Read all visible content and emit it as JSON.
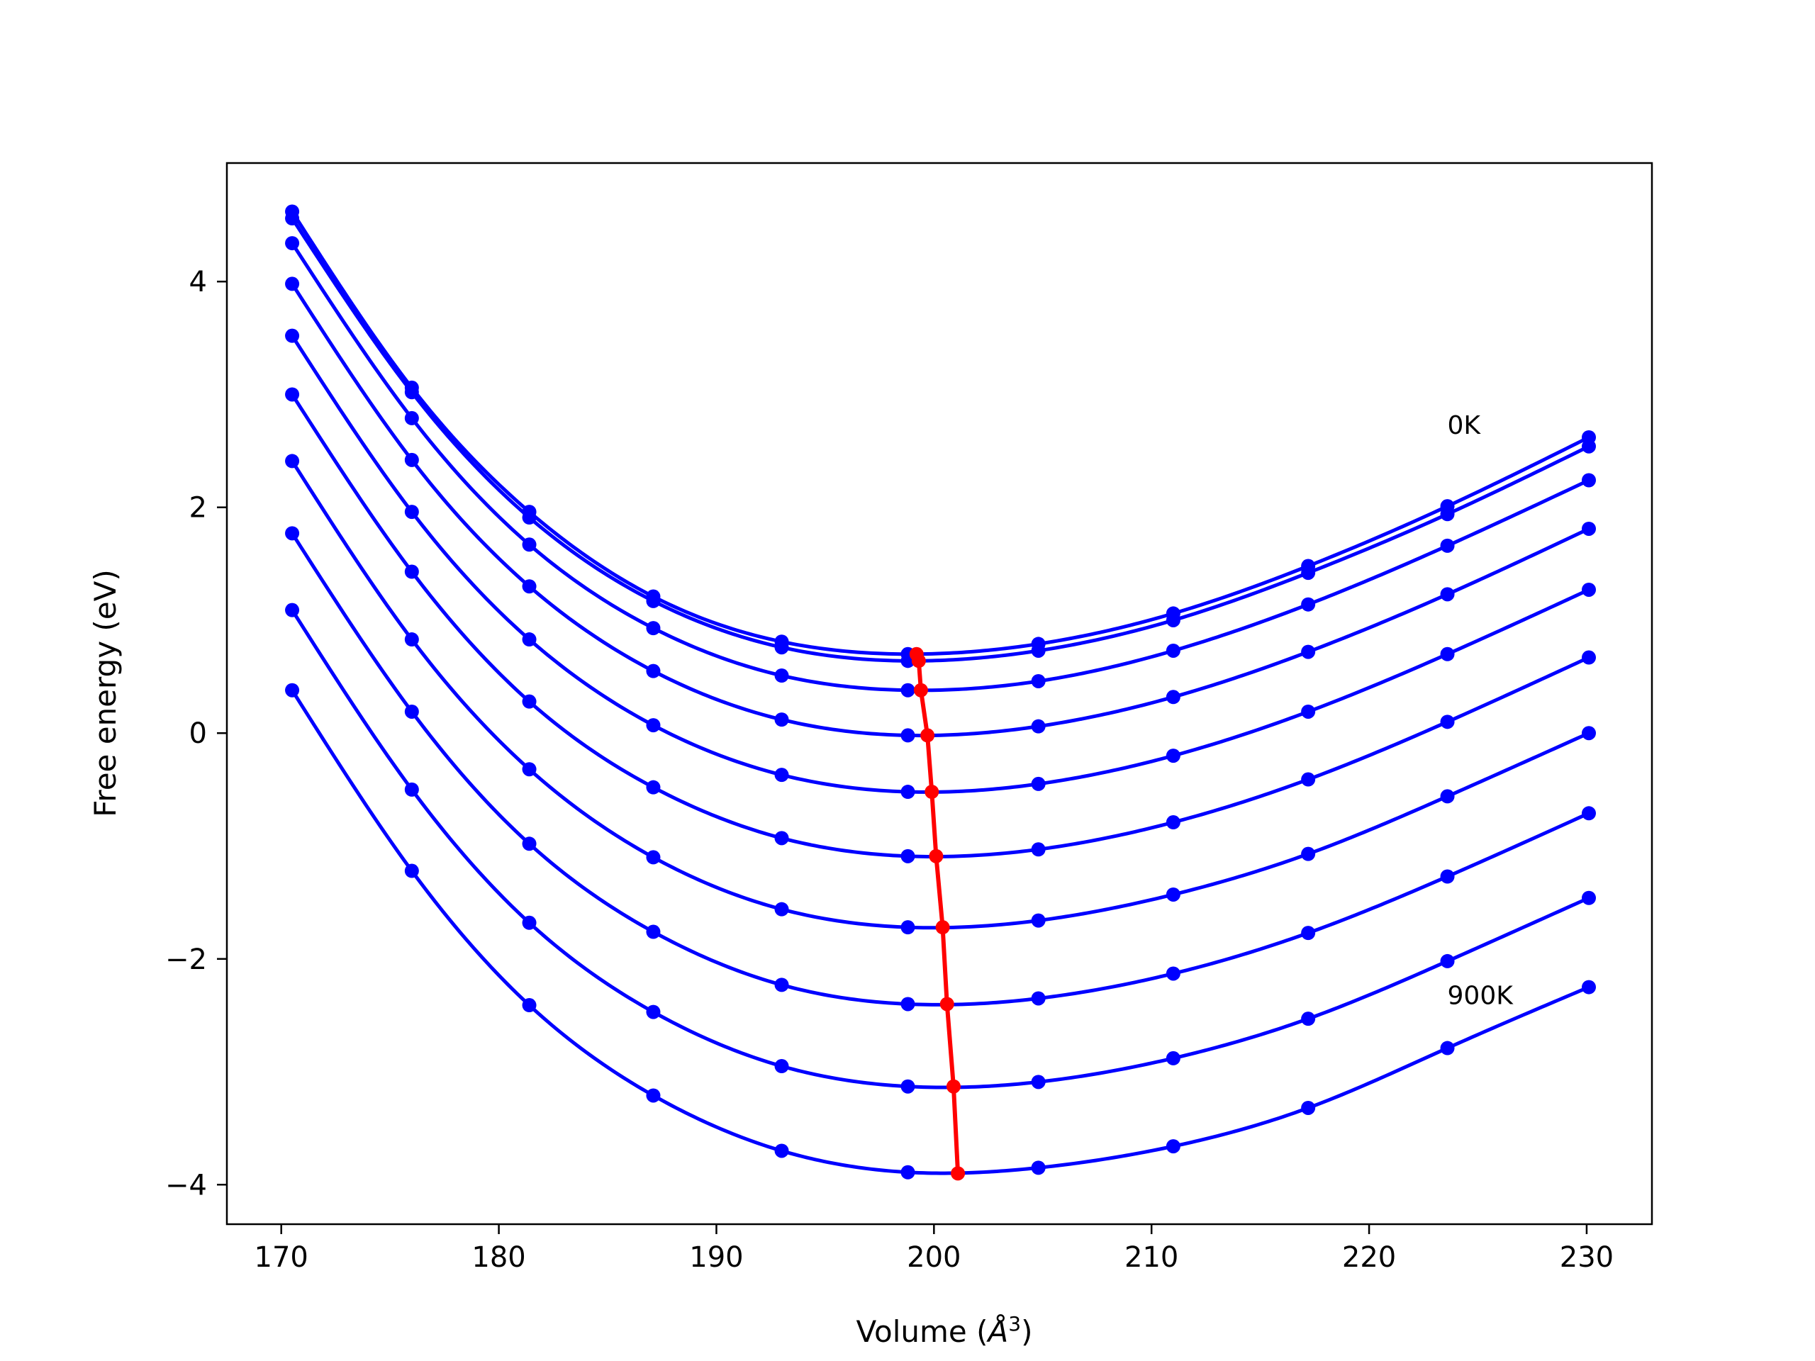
{
  "chart_data": {
    "type": "line",
    "title": "",
    "xlabel": "Volume (",
    "xlabel_symbol": "Å",
    "xlabel_sup": "3",
    "xlabel_end": ")",
    "ylabel": "Free energy (eV)",
    "xlim": [
      167.5,
      233.0
    ],
    "ylim": [
      -4.35,
      5.05
    ],
    "xticks": [
      170,
      180,
      190,
      200,
      210,
      220,
      230
    ],
    "xtick_labels": [
      "170",
      "180",
      "190",
      "200",
      "210",
      "220",
      "230"
    ],
    "yticks": [
      -4,
      -2,
      0,
      2,
      4
    ],
    "ytick_labels": [
      "−4",
      "−2",
      "0",
      "2",
      "4"
    ],
    "grid": false,
    "annotations": [
      {
        "text": "0K",
        "x": 223.6,
        "y": 2.65
      },
      {
        "text": "900K",
        "x": 223.6,
        "y": -2.4
      }
    ],
    "curve_color": "#0000ff",
    "minima_color": "#ff0000",
    "x": [
      170.5,
      176.0,
      181.4,
      187.1,
      193.0,
      198.8,
      204.8,
      211.0,
      217.2,
      223.6,
      230.1
    ],
    "series": [
      {
        "values": [
          4.62,
          3.06,
          1.96,
          1.21,
          0.81,
          0.7,
          0.79,
          1.06,
          1.48,
          2.01,
          2.62
        ],
        "min_x": 199.2,
        "min_y": 0.7
      },
      {
        "values": [
          4.56,
          3.02,
          1.91,
          1.17,
          0.76,
          0.64,
          0.73,
          1.0,
          1.42,
          1.94,
          2.54
        ],
        "min_x": 199.3,
        "min_y": 0.64
      },
      {
        "values": [
          4.34,
          2.79,
          1.67,
          0.93,
          0.51,
          0.38,
          0.46,
          0.73,
          1.14,
          1.66,
          2.24
        ],
        "min_x": 199.4,
        "min_y": 0.38
      },
      {
        "values": [
          3.98,
          2.42,
          1.3,
          0.55,
          0.12,
          -0.02,
          0.06,
          0.32,
          0.72,
          1.23,
          1.81
        ],
        "min_x": 199.7,
        "min_y": -0.02
      },
      {
        "values": [
          3.52,
          1.96,
          0.83,
          0.07,
          -0.37,
          -0.52,
          -0.45,
          -0.2,
          0.19,
          0.7,
          1.27
        ],
        "min_x": 199.9,
        "min_y": -0.52
      },
      {
        "values": [
          3.0,
          1.43,
          0.28,
          -0.48,
          -0.93,
          -1.09,
          -1.03,
          -0.79,
          -0.41,
          0.1,
          0.67
        ],
        "min_x": 200.1,
        "min_y": -1.09
      },
      {
        "values": [
          2.41,
          0.83,
          -0.32,
          -1.1,
          -1.56,
          -1.72,
          -1.66,
          -1.43,
          -1.07,
          -0.56,
          0.0
        ],
        "min_x": 200.4,
        "min_y": -1.72
      },
      {
        "values": [
          1.77,
          0.19,
          -0.98,
          -1.76,
          -2.23,
          -2.4,
          -2.35,
          -2.13,
          -1.77,
          -1.27,
          -0.71
        ],
        "min_x": 200.6,
        "min_y": -2.4
      },
      {
        "values": [
          1.09,
          -0.5,
          -1.68,
          -2.47,
          -2.95,
          -3.13,
          -3.09,
          -2.88,
          -2.53,
          -2.02,
          -1.46
        ],
        "min_x": 200.9,
        "min_y": -3.13
      },
      {
        "values": [
          0.38,
          -1.22,
          -2.41,
          -3.21,
          -3.7,
          -3.89,
          -3.85,
          -3.66,
          -3.32,
          -2.79,
          -2.25
        ],
        "min_x": 201.1,
        "min_y": -3.9
      }
    ]
  }
}
